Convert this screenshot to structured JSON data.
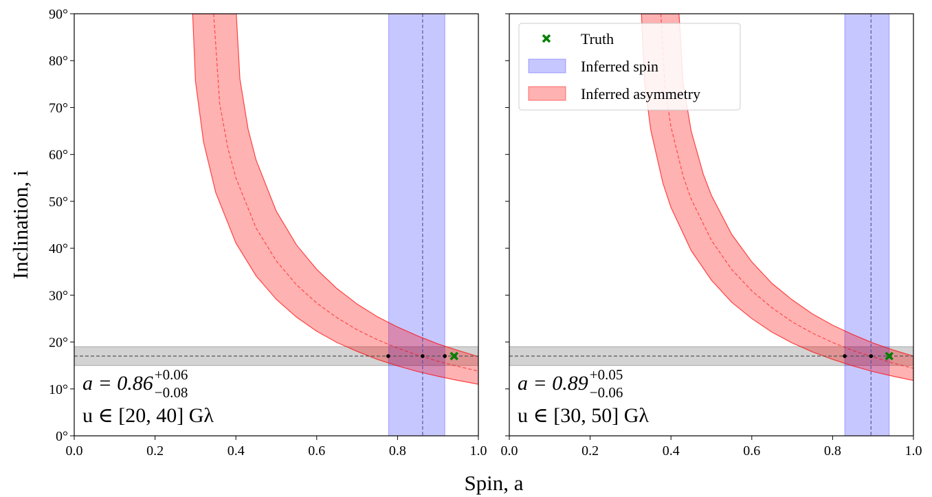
{
  "chart_data": [
    {
      "type": "band",
      "ylabel": "Inclination, i",
      "xlabel": "Spin, a",
      "xlim": [
        0,
        1
      ],
      "ylim": [
        0,
        90
      ],
      "xticks": [
        {
          "value": 0,
          "label": "0.0"
        },
        0.2,
        0.4,
        0.6,
        0.8,
        {
          "value": 1,
          "label": "1.0"
        }
      ],
      "yticks": [
        {
          "value": 0,
          "label": "0°"
        },
        {
          "value": 10,
          "label": "10°"
        },
        {
          "value": 20,
          "label": "20°"
        },
        {
          "value": 30,
          "label": "30°"
        },
        {
          "value": 40,
          "label": "40°"
        },
        {
          "value": 50,
          "label": "50°"
        },
        {
          "value": 60,
          "label": "60°"
        },
        {
          "value": 70,
          "label": "70°"
        },
        {
          "value": 80,
          "label": "80°"
        },
        {
          "value": 90,
          "label": "90°"
        }
      ],
      "inclination": {
        "color": "#808080",
        "range": [
          15,
          19
        ],
        "value": 17
      },
      "spin": {
        "color": "#0000ff",
        "range": [
          0.778,
          0.917
        ],
        "value": 0.862
      },
      "asymmetry": {
        "color": "#ff0000",
        "lower": {
          "x": [
            0.293,
            0.3,
            0.32,
            0.35,
            0.4,
            0.45,
            0.5,
            0.55,
            0.6,
            0.65,
            0.7,
            0.75,
            0.8,
            0.85,
            0.9,
            0.95,
            1.0
          ],
          "values": [
            90,
            75.6,
            62.6,
            51.9,
            41.1,
            34.1,
            29.1,
            25.3,
            22.3,
            19.9,
            18.0,
            16.3,
            14.9,
            13.7,
            12.7,
            11.8,
            11.0
          ]
        },
        "upper": {
          "x": [
            0.401,
            0.41,
            0.43,
            0.45,
            0.5,
            0.55,
            0.6,
            0.65,
            0.7,
            0.75,
            0.8,
            0.85,
            0.9,
            0.95,
            1.0
          ],
          "values": [
            90,
            76.1,
            65.5,
            58.8,
            47.9,
            40.7,
            35.5,
            31.4,
            28.1,
            25.4,
            23.2,
            21.3,
            19.6,
            18.2,
            16.9
          ]
        },
        "center": {
          "x": [
            0.345,
            0.36,
            0.38,
            0.4,
            0.45,
            0.5,
            0.55,
            0.6,
            0.65,
            0.7,
            0.75,
            0.8,
            0.85,
            0.9,
            0.95,
            1.0
          ],
          "values": [
            90,
            70.8,
            61.4,
            55.0,
            44.3,
            37.3,
            32.2,
            28.3,
            25.2,
            22.6,
            20.5,
            18.7,
            17.2,
            15.9,
            14.8,
            13.8
          ]
        }
      },
      "intersections": {
        "x": [
          0.777,
          0.862,
          0.917
        ],
        "values": [
          17,
          17,
          17
        ]
      },
      "truth": {
        "color": "#008000",
        "x": 0.94,
        "y": 17
      },
      "annotation": {
        "text": "a = 0.86",
        "sup": "+0.06",
        "sub": "−0.08",
        "line2": "u ∈ [20, 40] Gλ"
      }
    },
    {
      "type": "band",
      "sharey": true,
      "legend": "upper left",
      "xlim": [
        0,
        1
      ],
      "ylim": [
        0,
        90
      ],
      "xticks": [
        {
          "value": 0,
          "label": "0.0"
        },
        0.2,
        0.4,
        0.6,
        0.8,
        {
          "value": 1,
          "label": "1.0"
        }
      ],
      "inclination": {
        "color": "#808080",
        "range": [
          15,
          19
        ],
        "value": 17
      },
      "spin": {
        "name": "Inferred spin",
        "color": "#0000ff",
        "range": [
          0.83,
          0.94
        ],
        "value": 0.895
      },
      "asymmetry": {
        "name": "Inferred asymmetry",
        "color": "#ff0000",
        "lower": {
          "x": [
            0.327,
            0.335,
            0.35,
            0.38,
            0.4,
            0.45,
            0.5,
            0.55,
            0.6,
            0.65,
            0.7,
            0.75,
            0.8,
            0.85,
            0.9,
            0.95,
            1.0
          ],
          "values": [
            90,
            75.1,
            65.2,
            53.9,
            48.7,
            39.5,
            33.2,
            28.5,
            25.0,
            22.1,
            19.8,
            17.9,
            16.3,
            14.9,
            13.7,
            12.7,
            11.8
          ]
        },
        "upper": {
          "x": [
            0.42,
            0.43,
            0.45,
            0.48,
            0.5,
            0.55,
            0.6,
            0.65,
            0.7,
            0.75,
            0.8,
            0.85,
            0.9,
            0.95,
            1.0
          ],
          "values": [
            90,
            75.3,
            65.0,
            55.8,
            51.3,
            43.0,
            37.1,
            32.5,
            29.0,
            26.0,
            23.6,
            21.6,
            19.8,
            18.3,
            17.0
          ]
        },
        "center": {
          "x": [
            0.375,
            0.385,
            0.4,
            0.43,
            0.45,
            0.5,
            0.55,
            0.6,
            0.65,
            0.7,
            0.75,
            0.8,
            0.85,
            0.9,
            0.95,
            1.0
          ],
          "values": [
            90,
            74.4,
            65.9,
            55.4,
            50.5,
            41.7,
            35.5,
            30.9,
            27.3,
            24.3,
            21.9,
            19.9,
            18.2,
            16.8,
            15.5,
            14.4
          ]
        }
      },
      "intersections": {
        "x": [
          0.83,
          0.895,
          0.94
        ],
        "values": [
          17,
          17,
          17
        ]
      },
      "truth": {
        "name": "Truth",
        "color": "#008000",
        "x": 0.94,
        "y": 17
      },
      "annotation": {
        "text": "a = 0.89",
        "sup": "+0.05",
        "sub": "−0.06",
        "line2": "u ∈ [30, 50] Gλ"
      }
    }
  ]
}
